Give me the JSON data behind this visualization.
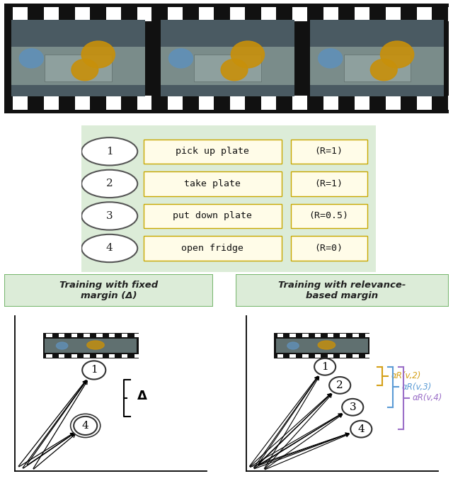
{
  "bg_color": "#ffffff",
  "film_strip_color": "#111111",
  "green_bg": "#dcecd8",
  "green_border": "#7ab870",
  "yellow_bg": "#fffce8",
  "yellow_border": "#c8a800",
  "table_items": [
    {
      "num": "1",
      "label": "pick up plate",
      "relevance": "(R=1)"
    },
    {
      "num": "2",
      "label": "take plate",
      "relevance": "(R=1)"
    },
    {
      "num": "3",
      "label": "put down plate",
      "relevance": "(R=0.5)"
    },
    {
      "num": "4",
      "label": "open fridge",
      "relevance": "(R=0)"
    }
  ],
  "left_title": "Training with fixed\nmargin (Δ)",
  "right_title": "Training with relevance-\nbased margin",
  "color_rv2": "#d4a017",
  "color_rv3": "#5b9bd5",
  "color_rv4": "#9b6fc8",
  "label_rv2": "αR(v,2)",
  "label_rv3": "αR(v,3)",
  "label_rv4": "αR(v,4)"
}
